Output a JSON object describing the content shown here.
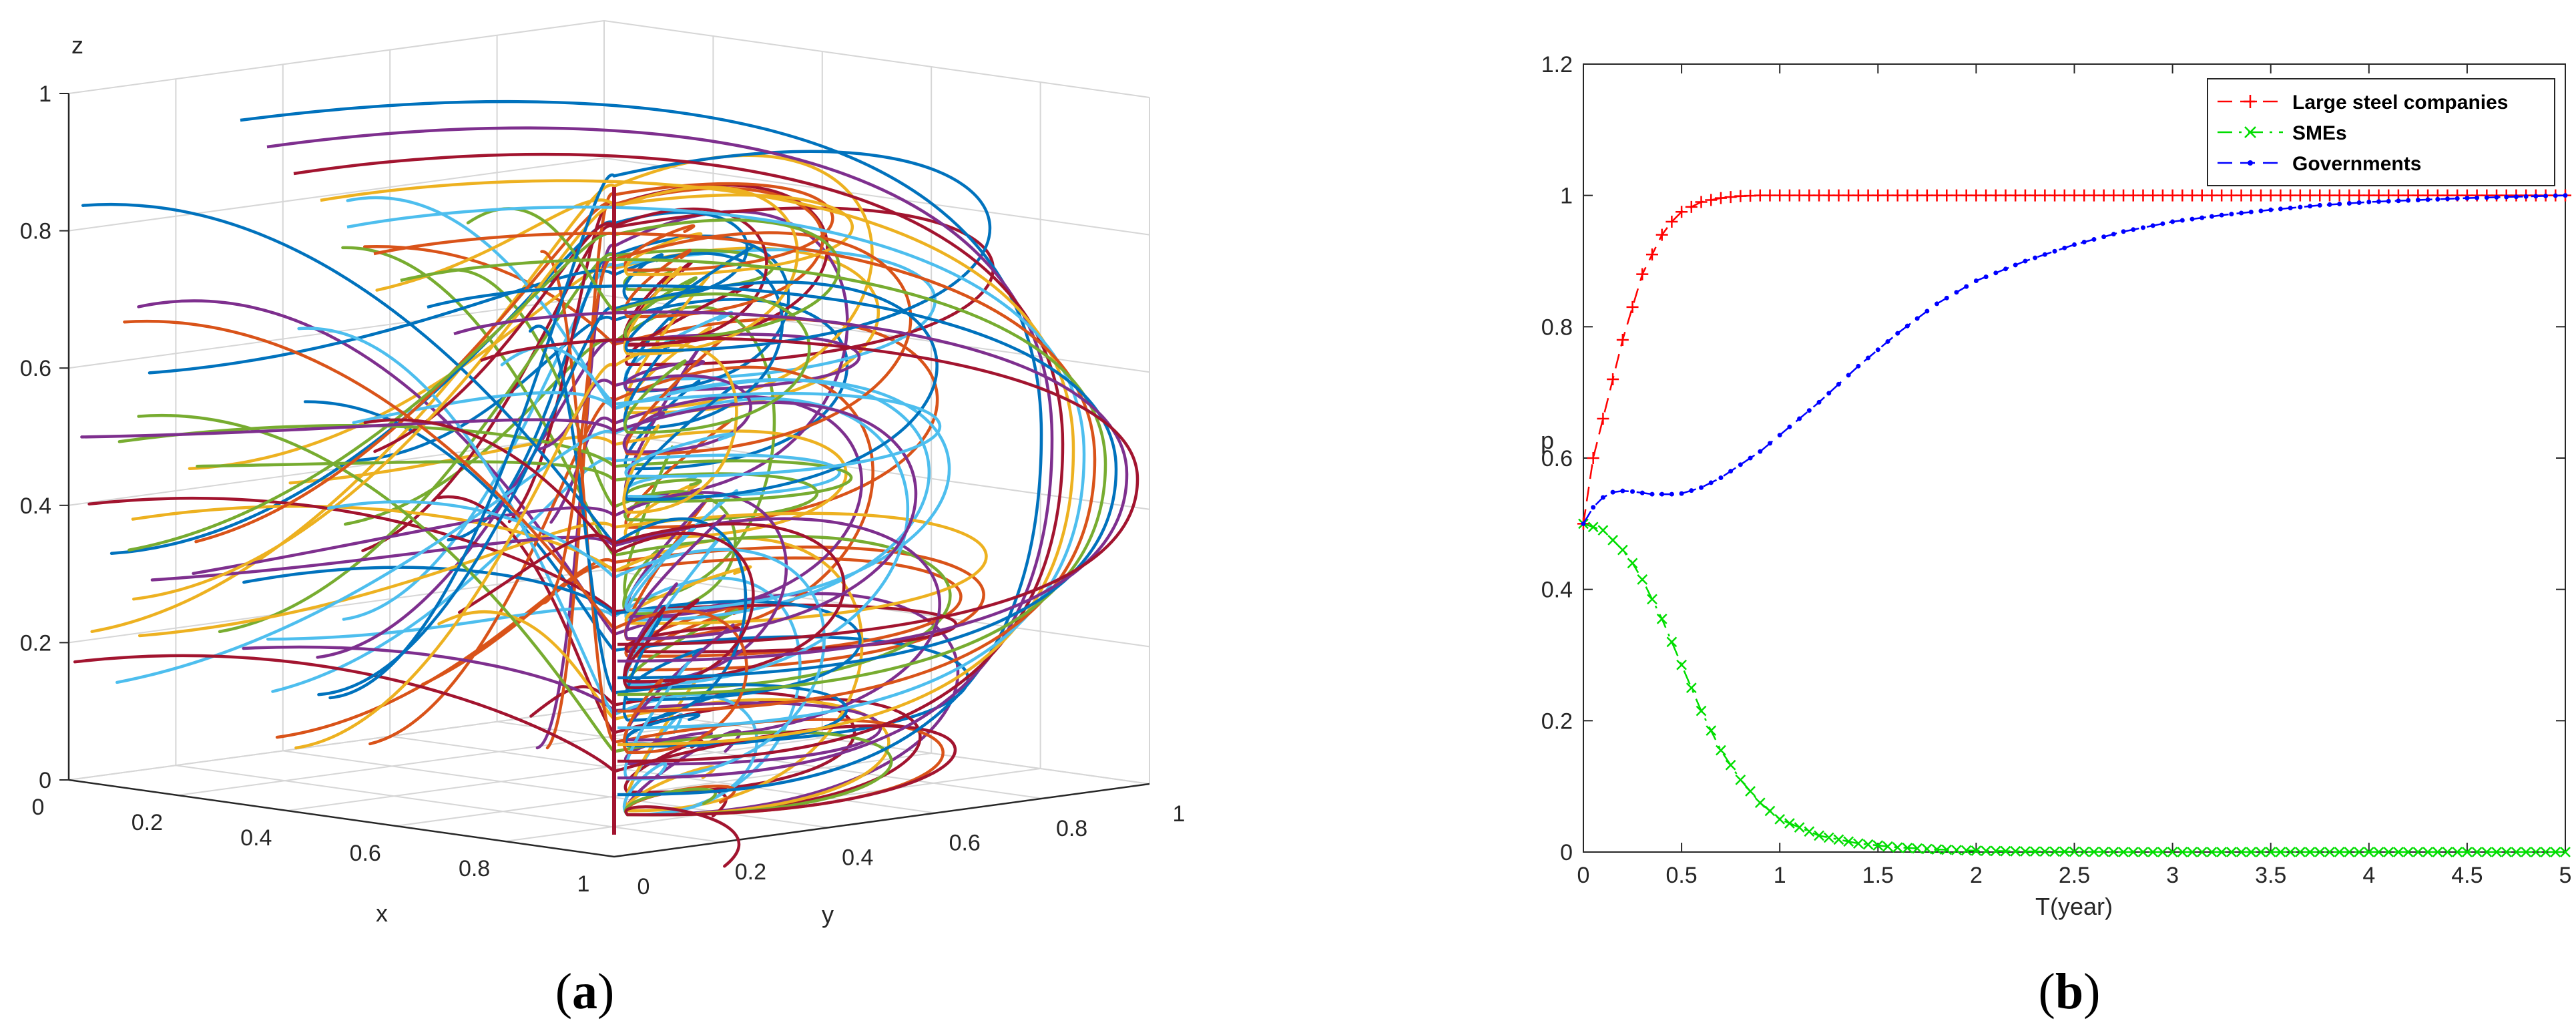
{
  "panel_a": {
    "caption_open": "(",
    "caption_letter": "a",
    "caption_close": ")"
  },
  "panel_b": {
    "caption_open": "(",
    "caption_letter": "b",
    "caption_close": ")"
  },
  "chart_data": [
    {
      "type": "line",
      "panel": "a",
      "projection": "3d",
      "xlabel": "x",
      "ylabel": "y",
      "zlabel": "z",
      "xlim": [
        0,
        1
      ],
      "ylim": [
        0,
        1
      ],
      "zlim": [
        0,
        1
      ],
      "x_ticks": [
        "0",
        "0.2",
        "0.4",
        "0.6",
        "0.8",
        "1"
      ],
      "y_ticks": [
        "0",
        "0.2",
        "0.4",
        "0.6",
        "0.8",
        "1"
      ],
      "z_ticks": [
        "0",
        "0.2",
        "0.4",
        "0.6",
        "0.8",
        "1"
      ],
      "grid": true,
      "trajectory_count": 64,
      "trajectory_colors": [
        "#0072BD",
        "#D95319",
        "#EDB120",
        "#7E2F8E",
        "#77AC30",
        "#4DBEEE",
        "#A2142F"
      ]
    },
    {
      "type": "line",
      "panel": "b",
      "xlabel": "T(year)",
      "ylabel": "p",
      "xlim": [
        0,
        5
      ],
      "ylim": [
        0,
        1.2
      ],
      "x_ticks": [
        "0",
        "0.5",
        "1",
        "1.5",
        "2",
        "2.5",
        "3",
        "3.5",
        "4",
        "4.5",
        "5"
      ],
      "y_ticks": [
        "0",
        "0.2",
        "0.4",
        "0.6",
        "0.8",
        "1",
        "1.2"
      ],
      "grid": false,
      "legend_position": "top-right",
      "x": [
        0,
        0.05,
        0.1,
        0.15,
        0.2,
        0.25,
        0.3,
        0.35,
        0.4,
        0.45,
        0.5,
        0.6,
        0.7,
        0.8,
        0.9,
        1.0,
        1.2,
        1.4,
        1.6,
        1.8,
        2.0,
        2.25,
        2.5,
        2.75,
        3.0,
        3.25,
        3.5,
        3.75,
        4.0,
        4.25,
        4.5,
        4.75,
        5.0
      ],
      "series": [
        {
          "name": "Large steel companies",
          "color": "#ff0000",
          "marker": "+",
          "linestyle": "dashed",
          "values": [
            0.5,
            0.6,
            0.66,
            0.72,
            0.78,
            0.83,
            0.88,
            0.91,
            0.94,
            0.96,
            0.975,
            0.99,
            0.996,
            0.999,
            1.0,
            1.0,
            1.0,
            1.0,
            1.0,
            1.0,
            1.0,
            1.0,
            1.0,
            1.0,
            1.0,
            1.0,
            1.0,
            1.0,
            1.0,
            1.0,
            1.0,
            1.0,
            1.0
          ]
        },
        {
          "name": "SMEs",
          "color": "#00dd00",
          "marker": "x",
          "linestyle": "dashdot",
          "values": [
            0.5,
            0.495,
            0.49,
            0.475,
            0.46,
            0.44,
            0.415,
            0.385,
            0.355,
            0.32,
            0.285,
            0.215,
            0.155,
            0.11,
            0.075,
            0.05,
            0.025,
            0.013,
            0.007,
            0.004,
            0.002,
            0.001,
            0.0005,
            0.0,
            0.0,
            0.0,
            0.0,
            0.0,
            0.0,
            0.0,
            0.0,
            0.0,
            0.0
          ]
        },
        {
          "name": "Governments",
          "color": "#0000ff",
          "marker": ".",
          "linestyle": "dashed",
          "values": [
            0.5,
            0.525,
            0.54,
            0.548,
            0.55,
            0.549,
            0.547,
            0.545,
            0.545,
            0.545,
            0.546,
            0.555,
            0.57,
            0.59,
            0.61,
            0.635,
            0.685,
            0.74,
            0.79,
            0.835,
            0.87,
            0.9,
            0.925,
            0.945,
            0.96,
            0.97,
            0.978,
            0.985,
            0.99,
            0.993,
            0.996,
            0.998,
            1.0
          ]
        }
      ]
    }
  ]
}
